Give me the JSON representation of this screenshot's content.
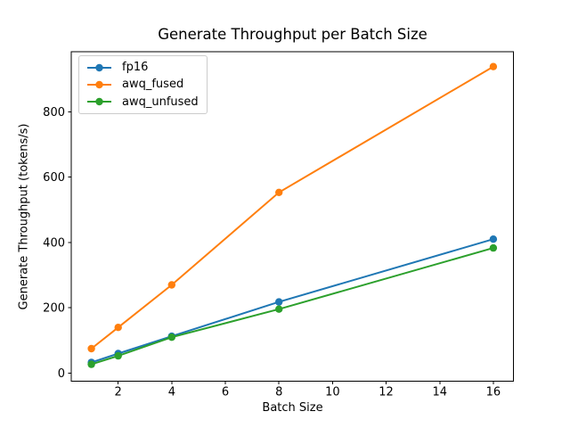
{
  "figure": {
    "title": "Generate Throughput per Batch Size",
    "xlabel": "Batch Size",
    "ylabel": "Generate Throughput (tokens/s)"
  },
  "legend": {
    "entries": [
      {
        "label": "fp16",
        "color": "#1f77b4"
      },
      {
        "label": "awq_fused",
        "color": "#ff7f0e"
      },
      {
        "label": "awq_unfused",
        "color": "#2ca02c"
      }
    ]
  },
  "chart_data": {
    "type": "line",
    "title": "Generate Throughput per Batch Size",
    "xlabel": "Batch Size",
    "ylabel": "Generate Throughput (tokens/s)",
    "x": [
      1,
      2,
      4,
      8,
      16
    ],
    "series": [
      {
        "name": "fp16",
        "color": "#1f77b4",
        "marker": "o",
        "values": [
          33,
          60,
          113,
          218,
          410
        ]
      },
      {
        "name": "awq_fused",
        "color": "#ff7f0e",
        "marker": "o",
        "values": [
          75,
          140,
          270,
          553,
          938
        ]
      },
      {
        "name": "awq_unfused",
        "color": "#2ca02c",
        "marker": "o",
        "values": [
          27,
          53,
          110,
          196,
          383
        ]
      }
    ],
    "xticks": [
      2,
      4,
      6,
      8,
      10,
      12,
      14,
      16
    ],
    "yticks": [
      0,
      200,
      400,
      600,
      800
    ],
    "xlim": [
      0.25,
      16.75
    ],
    "ylim": [
      -24.6,
      983.6
    ],
    "grid": false,
    "legend_position": "upper left"
  }
}
